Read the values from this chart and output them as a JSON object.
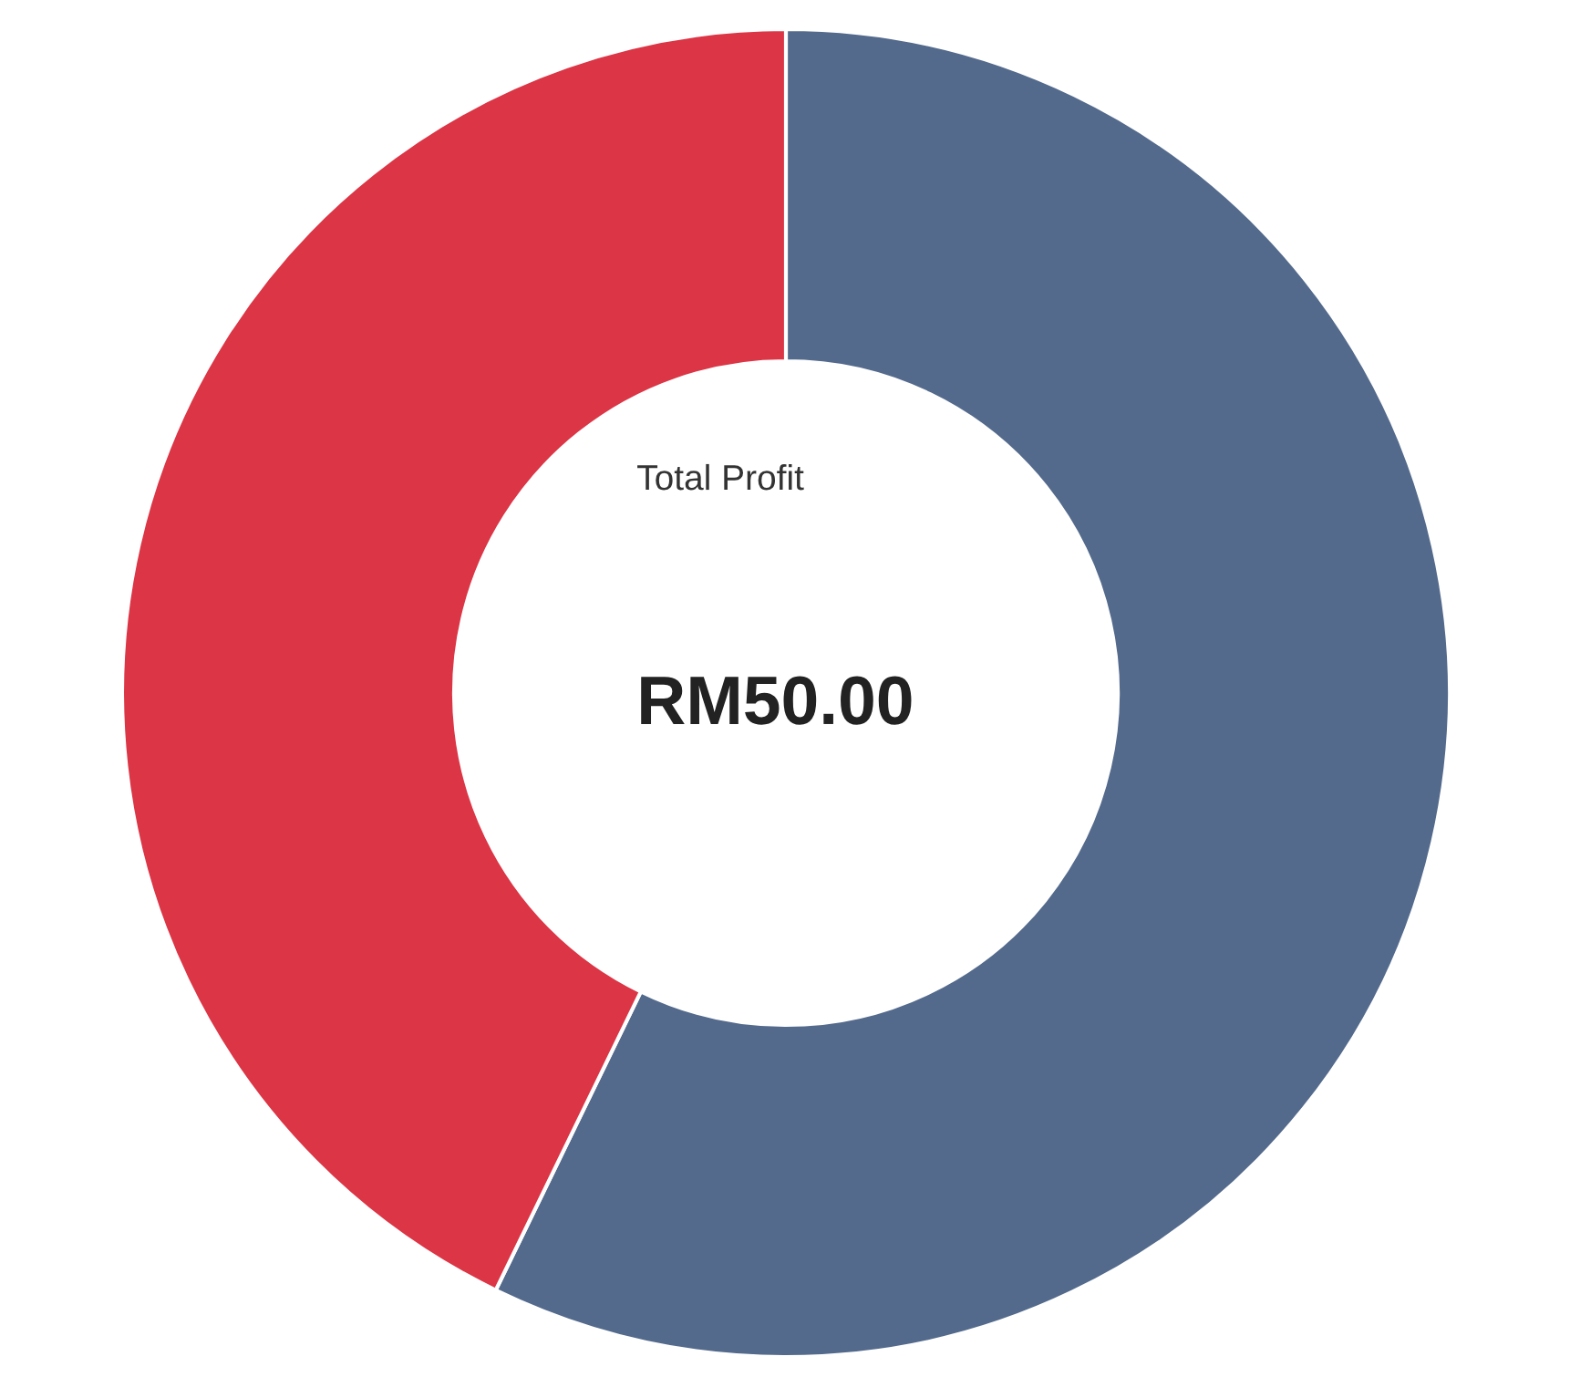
{
  "chart_data": {
    "type": "donut",
    "categories": [
      null,
      null
    ],
    "values": [
      57.2,
      42.8
    ],
    "colors": [
      "#536a8c",
      "#dc3545"
    ],
    "annotations": [
      "Total Profit",
      "RM50.00"
    ]
  }
}
